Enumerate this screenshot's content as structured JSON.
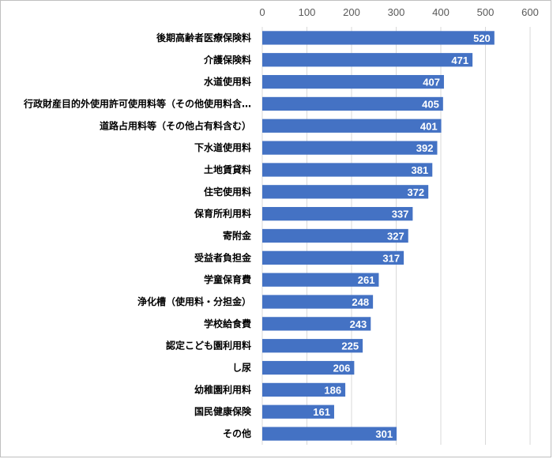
{
  "chart_data": {
    "type": "bar",
    "orientation": "horizontal",
    "title": "",
    "xlabel": "",
    "ylabel": "",
    "xlim": [
      0,
      600
    ],
    "ticks": [
      0,
      100,
      200,
      300,
      400,
      500,
      600
    ],
    "tick_position": "top",
    "grid": true,
    "legend": "none",
    "bar_color": "#4472c4",
    "categories": [
      "後期高齢者医療保険料",
      "介護保険料",
      "水道使用料",
      "行政財産目的外使用許可使用料等（その他使用料含…",
      "道路占用料等（その他占有料含む）",
      "下水道使用料",
      "土地賃貸料",
      "住宅使用料",
      "保育所利用料",
      "寄附金",
      "受益者負担金",
      "学童保育費",
      "浄化槽（使用料・分担金）",
      "学校給食費",
      "認定こども園利用料",
      "し尿",
      "幼稚園利用料",
      "国民健康保険",
      "その他"
    ],
    "values": [
      520,
      471,
      407,
      405,
      401,
      392,
      381,
      372,
      337,
      327,
      317,
      261,
      248,
      243,
      225,
      206,
      186,
      161,
      301
    ]
  }
}
